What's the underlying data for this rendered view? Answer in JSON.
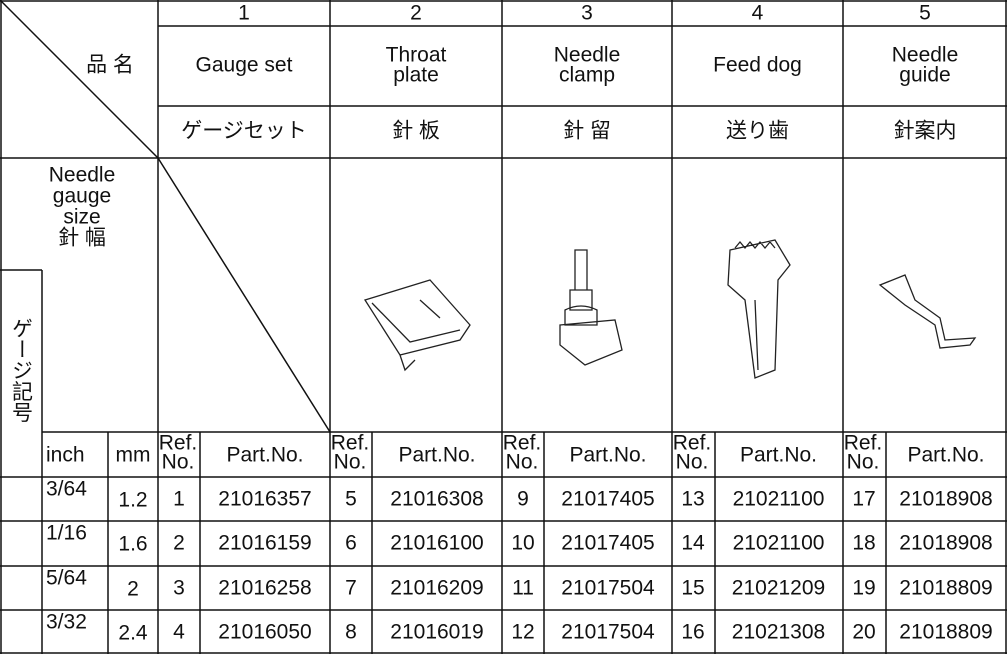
{
  "header": {
    "numbers": [
      "1",
      "2",
      "3",
      "4",
      "5"
    ],
    "name_label": "品 名",
    "names_en": [
      [
        "Gauge set"
      ],
      [
        "Throat",
        "plate"
      ],
      [
        "Needle",
        "clamp"
      ],
      [
        "Feed dog"
      ],
      [
        "Needle",
        "guide"
      ]
    ],
    "names_ja": [
      "ゲージセット",
      "針 板",
      "針 留",
      "送り歯",
      "針案内"
    ],
    "gauge_label": [
      "Needle",
      "gauge",
      "size",
      "針 幅"
    ],
    "symbol_label": "ゲージ記号",
    "inch": "inch",
    "mm": "mm",
    "columns": [
      {
        "ref": [
          "Ref.",
          "No."
        ],
        "part": "Part.No."
      },
      {
        "ref": [
          "Ref.",
          "No."
        ],
        "part": "Part.No."
      },
      {
        "ref": [
          "Ref.",
          "No."
        ],
        "part": "Part.No."
      },
      {
        "ref": [
          "Ref.",
          "No."
        ],
        "part": "Part.No."
      },
      {
        "ref": [
          "Ref.",
          "No."
        ],
        "part": "Part.No."
      }
    ]
  },
  "table": {
    "rows": [
      [
        "3/64",
        "1.2",
        "1",
        "21016357",
        "5",
        "21016308",
        "9",
        "21017405",
        "13",
        "21021100",
        "17",
        "21018908"
      ],
      [
        "1/16",
        "1.6",
        "2",
        "21016159",
        "6",
        "21016100",
        "10",
        "21017405",
        "14",
        "21021100",
        "18",
        "21018908"
      ],
      [
        "5/64",
        "2",
        "3",
        "21016258",
        "7",
        "21016209",
        "11",
        "21017504",
        "15",
        "21021209",
        "19",
        "21018809"
      ],
      [
        "3/32",
        "2.4",
        "4",
        "21016050",
        "8",
        "21016019",
        "12",
        "21017504",
        "16",
        "21021308",
        "20",
        "21018809"
      ]
    ]
  }
}
